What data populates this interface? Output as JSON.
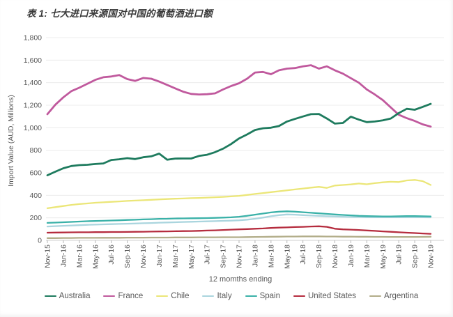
{
  "title": "表 1: 七大进口来源国对中国的葡萄酒进口额",
  "colors": {
    "background": "#ffffff",
    "grid": "#ececec",
    "baseline": "#cfcfcf",
    "axis_text": "#595959",
    "title_text": "#3a3a3a"
  },
  "chart_data": {
    "type": "line",
    "title": "表 1: 七大进口来源国对中国的葡萄酒进口额",
    "xlabel": "12 momths ending",
    "ylabel": "Import Value (AUD, Millions)",
    "ylim": [
      0,
      1800
    ],
    "y_tick_step": 200,
    "y_tick_labels": [
      "0",
      "200",
      "400",
      "600",
      "800",
      "1,000",
      "1,200",
      "1,400",
      "1,600",
      "1,800"
    ],
    "x_months": 49,
    "x_tick_every": 2,
    "x_tick_labels": [
      "Nov-15",
      "Jan-16",
      "Mar-16",
      "May-16",
      "Jul-16",
      "Sep-16",
      "Nov-16",
      "Jan-17",
      "Mar-17",
      "May-17",
      "Jul-17",
      "Sep-17",
      "Nov-17",
      "Jan-18",
      "Mar-18",
      "May-18",
      "Jul-18",
      "Sep-18",
      "Nov-18",
      "Jan-19",
      "Mar-19",
      "May-19",
      "Jul-19",
      "Sep-19",
      "Nov-19"
    ],
    "grid": "horizontal",
    "legend_position": "bottom",
    "series": [
      {
        "name": "Australia",
        "color": "#1e7b5e",
        "values": [
          578,
          610,
          640,
          660,
          668,
          671,
          678,
          683,
          714,
          720,
          730,
          722,
          738,
          746,
          770,
          716,
          726,
          727,
          727,
          750,
          760,
          783,
          814,
          855,
          905,
          940,
          980,
          995,
          1000,
          1015,
          1055,
          1078,
          1100,
          1120,
          1122,
          1082,
          1037,
          1042,
          1098,
          1072,
          1050,
          1055,
          1066,
          1082,
          1130,
          1168,
          1160,
          1185,
          1212
        ]
      },
      {
        "name": "France",
        "color": "#c0599d",
        "values": [
          1120,
          1205,
          1270,
          1325,
          1355,
          1390,
          1425,
          1448,
          1455,
          1468,
          1432,
          1416,
          1442,
          1435,
          1410,
          1380,
          1350,
          1320,
          1300,
          1295,
          1298,
          1305,
          1340,
          1370,
          1395,
          1435,
          1490,
          1495,
          1475,
          1510,
          1525,
          1530,
          1545,
          1555,
          1525,
          1545,
          1510,
          1480,
          1440,
          1400,
          1340,
          1295,
          1245,
          1180,
          1115,
          1085,
          1060,
          1030,
          1010
        ]
      },
      {
        "name": "Chile",
        "color": "#ebe678",
        "values": [
          285,
          295,
          305,
          315,
          322,
          328,
          334,
          338,
          342,
          346,
          350,
          353,
          356,
          360,
          364,
          367,
          370,
          372,
          375,
          377,
          380,
          383,
          386,
          390,
          395,
          403,
          412,
          420,
          428,
          436,
          444,
          452,
          460,
          468,
          475,
          466,
          487,
          492,
          497,
          505,
          498,
          508,
          515,
          520,
          518,
          532,
          536,
          526,
          492
        ]
      },
      {
        "name": "Italy",
        "color": "#aad5de",
        "values": [
          123,
          126,
          129,
          132,
          135,
          138,
          140,
          142,
          144,
          146,
          148,
          150,
          152,
          154,
          157,
          159,
          161,
          163,
          165,
          167,
          169,
          171,
          173,
          175,
          178,
          184,
          192,
          202,
          214,
          224,
          230,
          228,
          224,
          220,
          217,
          214,
          212,
          210,
          208,
          207,
          206,
          205,
          205,
          205,
          205,
          206,
          206,
          205,
          204
        ]
      },
      {
        "name": "Spain",
        "color": "#3ab1a8",
        "values": [
          155,
          158,
          161,
          164,
          167,
          170,
          172,
          174,
          176,
          178,
          181,
          183,
          186,
          188,
          191,
          192,
          194,
          195,
          196,
          197,
          198,
          200,
          202,
          205,
          210,
          218,
          228,
          238,
          248,
          255,
          258,
          255,
          250,
          245,
          240,
          235,
          230,
          226,
          222,
          218,
          215,
          214,
          213,
          213,
          214,
          215,
          215,
          214,
          213
        ]
      },
      {
        "name": "United States",
        "color": "#b52c3e",
        "values": [
          68,
          69,
          70,
          71,
          72,
          72,
          73,
          73,
          74,
          74,
          75,
          76,
          77,
          78,
          79,
          80,
          81,
          82,
          83,
          85,
          87,
          89,
          92,
          95,
          98,
          100,
          103,
          106,
          110,
          113,
          115,
          118,
          120,
          123,
          125,
          120,
          103,
          98,
          95,
          92,
          88,
          84,
          80,
          76,
          72,
          68,
          65,
          61,
          58
        ]
      },
      {
        "name": "Argentina",
        "color": "#b2ad89",
        "values": [
          20,
          20,
          21,
          21,
          22,
          22,
          22,
          23,
          23,
          23,
          24,
          24,
          24,
          25,
          25,
          25,
          26,
          26,
          26,
          27,
          27,
          27,
          28,
          28,
          28,
          29,
          30,
          31,
          32,
          33,
          34,
          34,
          35,
          35,
          35,
          34,
          34,
          33,
          33,
          32,
          32,
          31,
          31,
          30,
          30,
          30,
          30,
          31,
          32
        ]
      }
    ]
  }
}
